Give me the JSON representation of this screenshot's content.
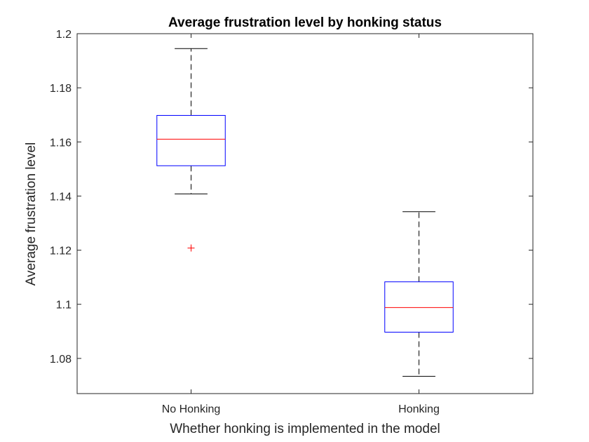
{
  "chart_data": {
    "type": "box",
    "title": "Average frustration level by honking status",
    "xlabel": "Whether honking is implemented in the model",
    "ylabel": "Average frustration level",
    "ylim": [
      1.067,
      1.2
    ],
    "yticks": [
      1.08,
      1.1,
      1.12,
      1.14,
      1.16,
      1.18,
      1.2
    ],
    "ytick_labels": [
      "1.08",
      "1.1",
      "1.12",
      "1.14",
      "1.16",
      "1.18",
      "1.2"
    ],
    "categories": [
      "No Honking",
      "Honking"
    ],
    "boxes": [
      {
        "category": "No Honking",
        "whisker_low": 1.1408,
        "q1": 1.1512,
        "median": 1.161,
        "q3": 1.1698,
        "whisker_high": 1.1945,
        "outliers": [
          1.1208
        ]
      },
      {
        "category": "Honking",
        "whisker_low": 1.0734,
        "q1": 1.0897,
        "median": 1.0988,
        "q3": 1.1083,
        "whisker_high": 1.1342,
        "outliers": []
      }
    ],
    "grid": false,
    "colors": {
      "box": "#0000ff",
      "median": "#ff0000",
      "whisker": "#000000",
      "outlier": "#ff0000",
      "axis": "#262626"
    }
  }
}
